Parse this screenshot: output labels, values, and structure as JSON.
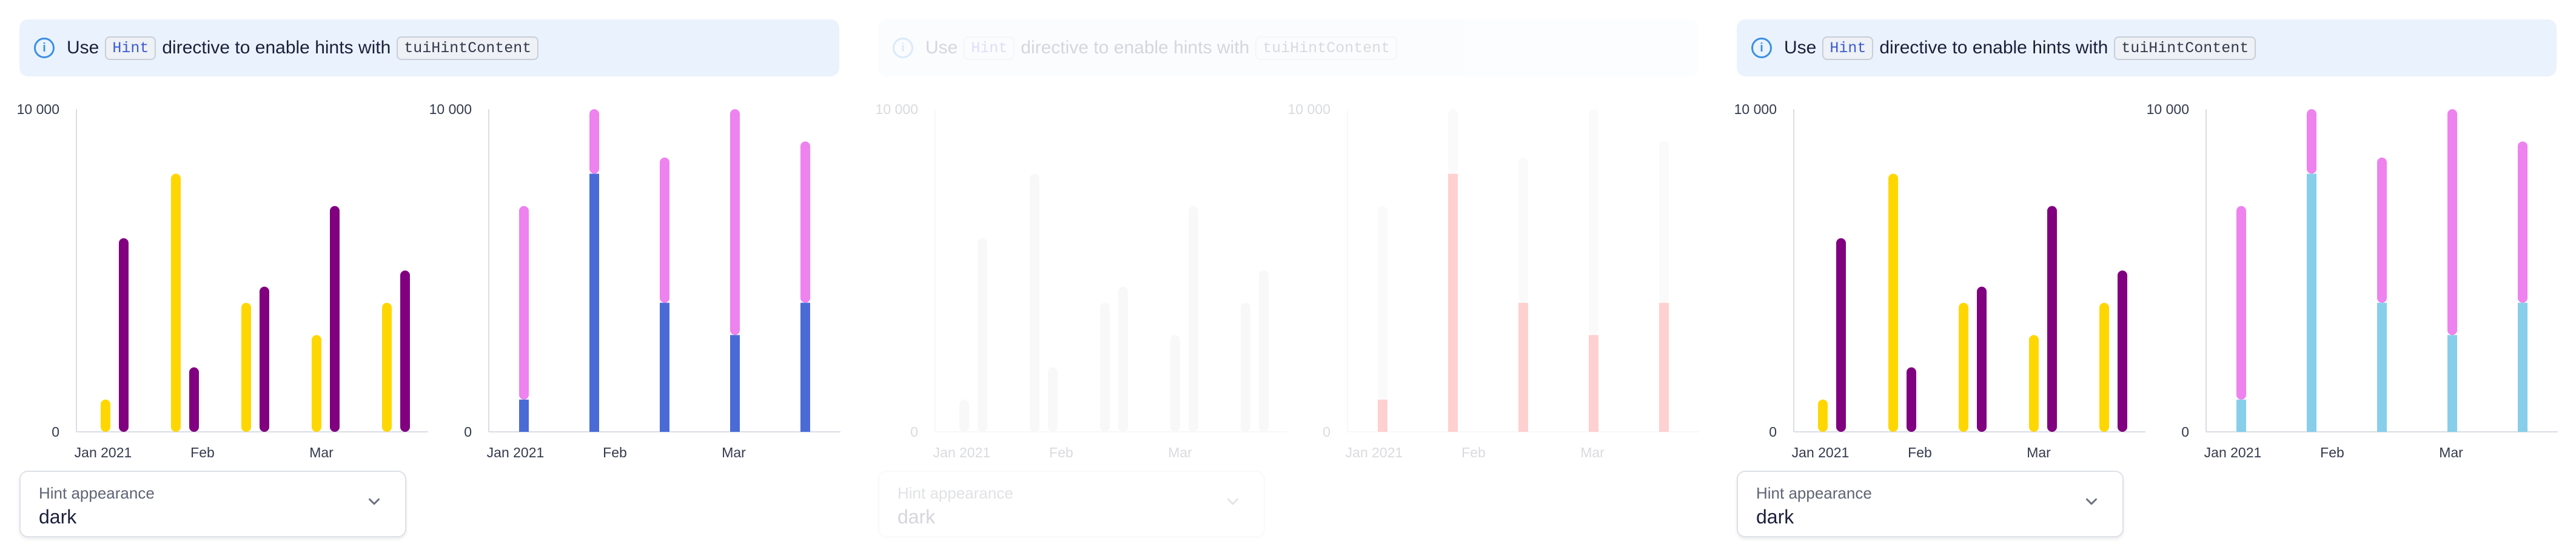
{
  "notification": {
    "use": "Use",
    "hint_code": "Hint",
    "middle": "directive to enable hints with",
    "content_code": "tuiHintContent"
  },
  "select": {
    "label": "Hint appearance",
    "value": "dark"
  },
  "colors": {
    "yellow": "#ffd700",
    "purple": "#800080",
    "pink": "#ee82ee",
    "blue": "#4a6bd6",
    "red": "#ff0000",
    "lightblue": "#87ceeb",
    "gray": "#d9d9d9",
    "lightgray": "#e6e6e6",
    "axis": "#d9dde5"
  },
  "chart_data": [
    {
      "type": "bar",
      "ylim": [
        0,
        10000
      ],
      "y_ticks": [
        "0",
        "10 000"
      ],
      "x_ticks": [
        "Jan 2021",
        "Feb",
        "Mar"
      ],
      "series": [
        {
          "values": [
            1000,
            8000,
            4000,
            3000,
            4000
          ]
        },
        {
          "values": [
            6000,
            2000,
            4500,
            7000,
            5000
          ]
        }
      ]
    },
    {
      "type": "bar",
      "stacked": true,
      "ylim": [
        0,
        10000
      ],
      "y_ticks": [
        "0",
        "10 000"
      ],
      "x_ticks": [
        "Jan 2021",
        "Feb",
        "Mar"
      ],
      "series": [
        {
          "values": [
            1000,
            8000,
            4000,
            3000,
            4000
          ]
        },
        {
          "values": [
            6000,
            2000,
            4500,
            7000,
            5000
          ]
        }
      ]
    }
  ],
  "panels": [
    {
      "chart1": {
        "x_ticks": [
          "Jan 2021",
          "Feb",
          "Mar"
        ],
        "colors": [
          "yellow",
          "purple"
        ]
      },
      "chart2": {
        "x_ticks": [
          "Feb",
          "Mar"
        ],
        "x_ticks_left": [
          "",
          "Feb",
          "Mar"
        ],
        "colors": [
          "blue",
          "pink"
        ]
      }
    },
    {
      "chart1": {
        "colors": [
          "gray",
          "gray"
        ]
      },
      "chart2": {
        "colors": [
          "red",
          "lightgray"
        ]
      }
    },
    {
      "chart1": {
        "colors": [
          "yellow",
          "purple"
        ]
      },
      "chart2": {
        "colors": [
          "lightblue",
          "pink"
        ]
      }
    }
  ]
}
